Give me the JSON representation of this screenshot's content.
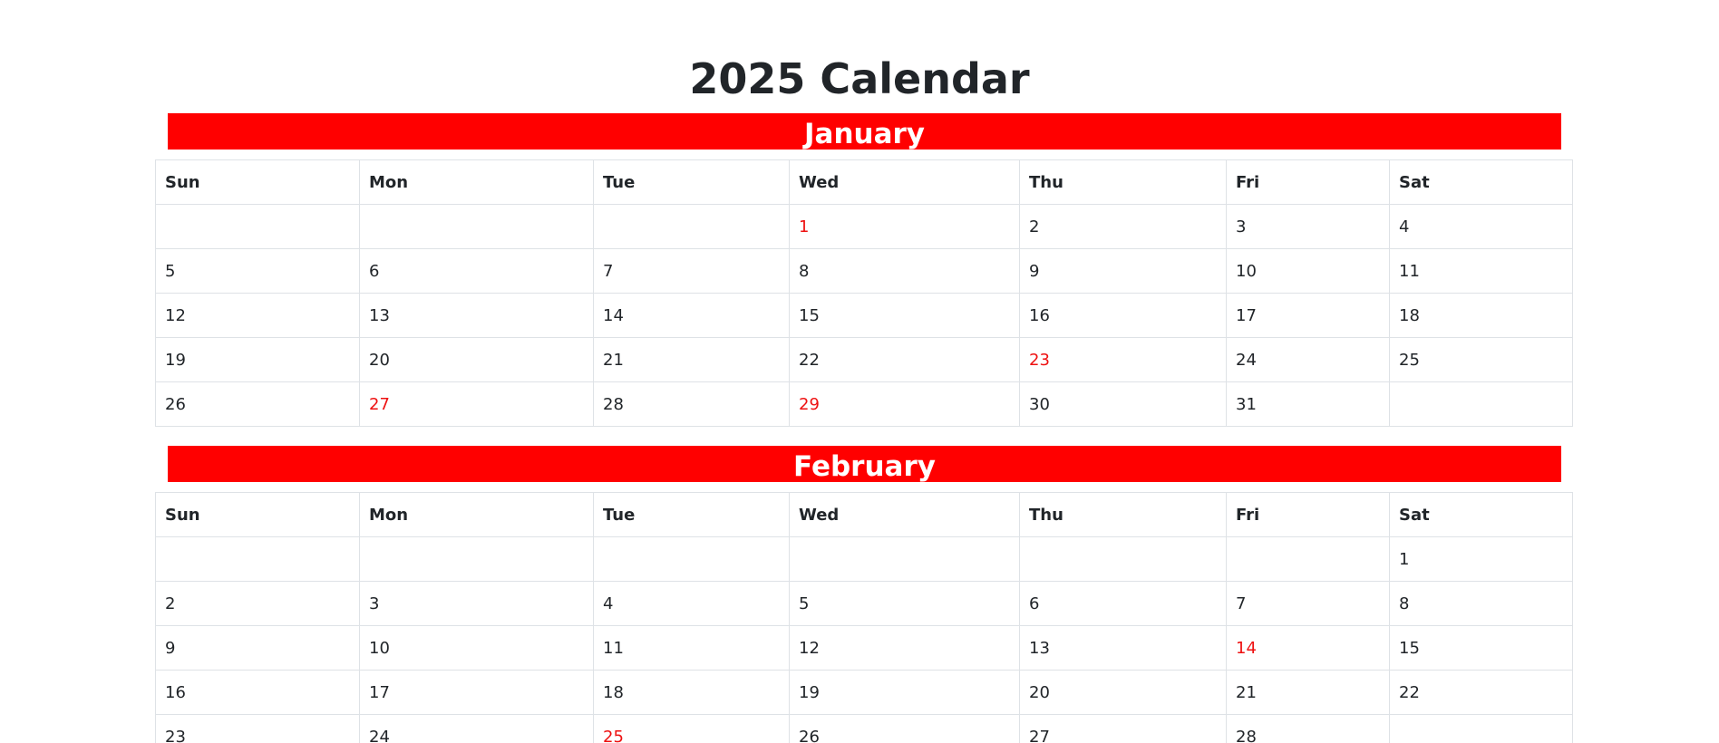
{
  "title": "2025 Calendar",
  "colors": {
    "month_bar": "#ff0000",
    "holiday_text": "#ee1111",
    "grid_border": "#dee2e6"
  },
  "weekdays": [
    "Sun",
    "Mon",
    "Tue",
    "Wed",
    "Thu",
    "Fri",
    "Sat"
  ],
  "months": [
    {
      "name": "January",
      "weeks": [
        [
          "",
          "",
          "",
          "1",
          "2",
          "3",
          "4"
        ],
        [
          "5",
          "6",
          "7",
          "8",
          "9",
          "10",
          "11"
        ],
        [
          "12",
          "13",
          "14",
          "15",
          "16",
          "17",
          "18"
        ],
        [
          "19",
          "20",
          "21",
          "22",
          "23",
          "24",
          "25"
        ],
        [
          "26",
          "27",
          "28",
          "29",
          "30",
          "31",
          ""
        ]
      ],
      "highlighted_days": [
        "1",
        "23",
        "27",
        "29"
      ]
    },
    {
      "name": "February",
      "weeks": [
        [
          "",
          "",
          "",
          "",
          "",
          "",
          "1"
        ],
        [
          "2",
          "3",
          "4",
          "5",
          "6",
          "7",
          "8"
        ],
        [
          "9",
          "10",
          "11",
          "12",
          "13",
          "14",
          "15"
        ],
        [
          "16",
          "17",
          "18",
          "19",
          "20",
          "21",
          "22"
        ],
        [
          "23",
          "24",
          "25",
          "26",
          "27",
          "28",
          ""
        ]
      ],
      "highlighted_days": [
        "14",
        "25"
      ]
    }
  ]
}
